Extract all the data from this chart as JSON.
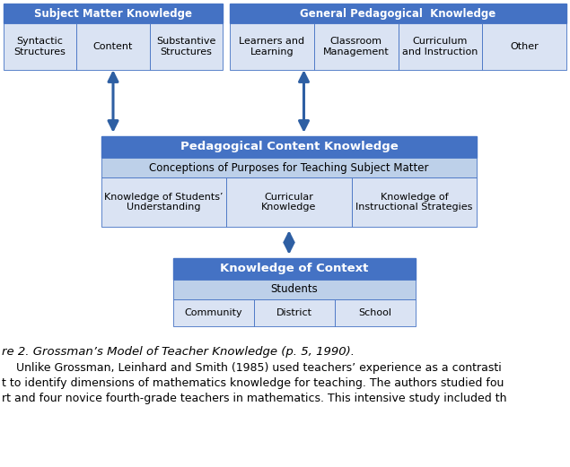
{
  "header_blue": "#4472C4",
  "header_text_color": "#FFFFFF",
  "light_blue_bg": "#BDD0E9",
  "lighter_blue_bg": "#DAE3F3",
  "white_bg": "#FFFFFF",
  "border_color": "#4472C4",
  "dark_arrow_color": "#2E5FA3",
  "smk_header": "Subject Matter Knowledge",
  "smk_cells": [
    "Syntactic\nStructures",
    "Content",
    "Substantive\nStructures"
  ],
  "gpk_header": "General Pedagogical  Knowledge",
  "gpk_cells": [
    "Learners and\nLearning",
    "Classroom\nManagement",
    "Curriculum\nand Instruction",
    "Other"
  ],
  "pck_header": "Pedagogical Content Knowledge",
  "pck_sub1": "Conceptions of Purposes for Teaching Subject Matter",
  "pck_cells": [
    "Knowledge of Students’\nUnderstanding",
    "Curricular\nKnowledge",
    "Knowledge of\nInstructional Strategies"
  ],
  "koc_header": "Knowledge of Context",
  "koc_sub1": "Students",
  "koc_cells": [
    "Community",
    "District",
    "School"
  ],
  "fig_label": "re 2. Grossman’s Model of Teacher Knowledge (p. 5, 1990).",
  "caption_lines": [
    "    Unlike Grossman, Leinhard and Smith (1985) used teachers’ experience as a contrasti",
    "t to identify dimensions of mathematics knowledge for teaching. The authors studied fou",
    "rt and four novice fourth-grade teachers in mathematics. This intensive study included th"
  ]
}
